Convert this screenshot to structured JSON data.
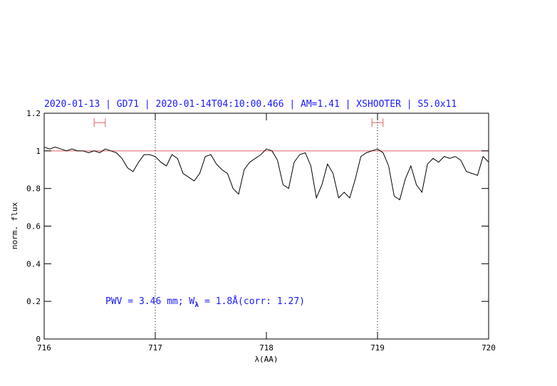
{
  "chart_data": {
    "type": "line",
    "title": "2020-01-13 | GD71 | 2020-01-14T04:10:00.466 | AM=1.41 | XSHOOTER | S5.0x11",
    "xlabel": "λ(AA)",
    "ylabel": "norm. flux",
    "annotation": [
      "PWV = 3.46 mm; W",
      "λ",
      " = 1.8Å(corr: 1.27)"
    ],
    "xlim": [
      716,
      720
    ],
    "ylim": [
      0,
      1.2
    ],
    "xticks": [
      716,
      717,
      718,
      719,
      720
    ],
    "yticks": [
      0,
      0.2,
      0.4,
      0.6,
      0.8,
      1,
      1.2
    ],
    "hline": {
      "value": 1,
      "color": "#e06060"
    },
    "vlines": [
      717,
      719
    ],
    "intervals": [
      {
        "x": [
          716.45,
          716.55
        ],
        "y": 1.15
      },
      {
        "x": [
          718.95,
          719.05
        ],
        "y": 1.15
      }
    ],
    "interval_color": "#e06060",
    "series": [
      {
        "color": "#000000",
        "x": [
          716,
          716.05,
          716.1,
          716.15,
          716.2,
          716.25,
          716.3,
          716.35,
          716.4,
          716.45,
          716.5,
          716.55,
          716.6,
          716.65,
          716.7,
          716.75,
          716.8,
          716.85,
          716.9,
          716.95,
          717,
          717.05,
          717.1,
          717.15,
          717.2,
          717.25,
          717.3,
          717.35,
          717.4,
          717.45,
          717.5,
          717.55,
          717.6,
          717.65,
          717.7,
          717.75,
          717.8,
          717.85,
          717.9,
          717.95,
          718,
          718.05,
          718.1,
          718.15,
          718.2,
          718.25,
          718.3,
          718.35,
          718.4,
          718.45,
          718.5,
          718.55,
          718.6,
          718.65,
          718.7,
          718.75,
          718.8,
          718.85,
          718.9,
          718.95,
          719,
          719.05,
          719.1,
          719.15,
          719.2,
          719.25,
          719.3,
          719.35,
          719.4,
          719.45,
          719.5,
          719.55,
          719.6,
          719.65,
          719.7,
          719.75,
          719.8,
          719.85,
          719.9,
          719.95,
          720
        ],
        "values": [
          1.02,
          1.01,
          1.02,
          1.01,
          1.0,
          1.01,
          1.0,
          1.0,
          0.99,
          1.0,
          0.99,
          1.01,
          1.0,
          0.99,
          0.96,
          0.91,
          0.89,
          0.94,
          0.98,
          0.98,
          0.97,
          0.94,
          0.92,
          0.98,
          0.96,
          0.88,
          0.86,
          0.84,
          0.88,
          0.97,
          0.98,
          0.93,
          0.9,
          0.88,
          0.8,
          0.77,
          0.9,
          0.94,
          0.96,
          0.98,
          1.01,
          1.0,
          0.95,
          0.82,
          0.8,
          0.94,
          0.98,
          0.99,
          0.92,
          0.75,
          0.82,
          0.93,
          0.88,
          0.75,
          0.78,
          0.75,
          0.85,
          0.97,
          0.99,
          1.0,
          1.01,
          0.99,
          0.92,
          0.76,
          0.74,
          0.85,
          0.92,
          0.82,
          0.78,
          0.93,
          0.96,
          0.94,
          0.97,
          0.96,
          0.97,
          0.95,
          0.89,
          0.88,
          0.87,
          0.97,
          0.94
        ]
      }
    ]
  }
}
